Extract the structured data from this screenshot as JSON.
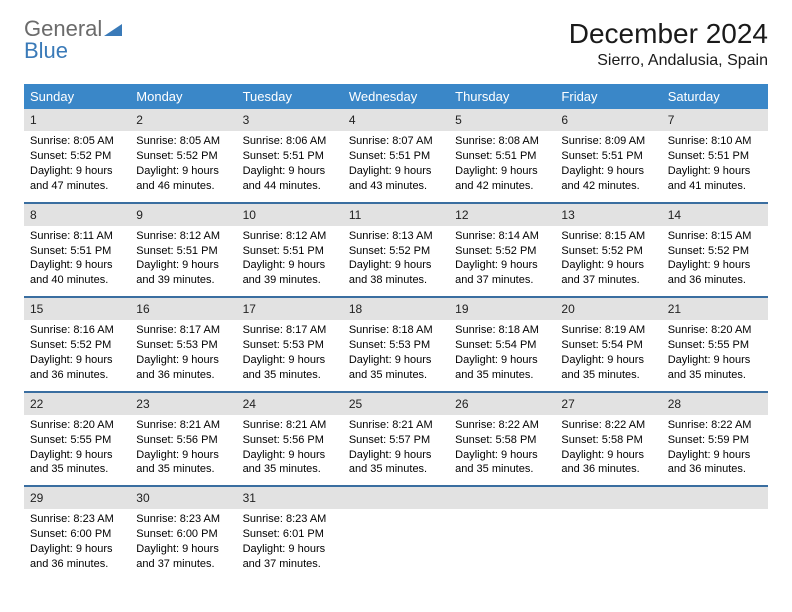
{
  "logo": {
    "textGrey": "General",
    "textBlue": "Blue"
  },
  "header": {
    "monthTitle": "December 2024",
    "location": "Sierro, Andalusia, Spain"
  },
  "colors": {
    "headerBar": "#3a87c8",
    "weekBorder": "#3a6ea0",
    "dayNumBg": "#e2e2e2",
    "logoGrey": "#6b6b6b",
    "logoBlue": "#3a7ab8"
  },
  "dayNames": [
    "Sunday",
    "Monday",
    "Tuesday",
    "Wednesday",
    "Thursday",
    "Friday",
    "Saturday"
  ],
  "weeks": [
    [
      {
        "n": "1",
        "sunrise": "Sunrise: 8:05 AM",
        "sunset": "Sunset: 5:52 PM",
        "d1": "Daylight: 9 hours",
        "d2": "and 47 minutes."
      },
      {
        "n": "2",
        "sunrise": "Sunrise: 8:05 AM",
        "sunset": "Sunset: 5:52 PM",
        "d1": "Daylight: 9 hours",
        "d2": "and 46 minutes."
      },
      {
        "n": "3",
        "sunrise": "Sunrise: 8:06 AM",
        "sunset": "Sunset: 5:51 PM",
        "d1": "Daylight: 9 hours",
        "d2": "and 44 minutes."
      },
      {
        "n": "4",
        "sunrise": "Sunrise: 8:07 AM",
        "sunset": "Sunset: 5:51 PM",
        "d1": "Daylight: 9 hours",
        "d2": "and 43 minutes."
      },
      {
        "n": "5",
        "sunrise": "Sunrise: 8:08 AM",
        "sunset": "Sunset: 5:51 PM",
        "d1": "Daylight: 9 hours",
        "d2": "and 42 minutes."
      },
      {
        "n": "6",
        "sunrise": "Sunrise: 8:09 AM",
        "sunset": "Sunset: 5:51 PM",
        "d1": "Daylight: 9 hours",
        "d2": "and 42 minutes."
      },
      {
        "n": "7",
        "sunrise": "Sunrise: 8:10 AM",
        "sunset": "Sunset: 5:51 PM",
        "d1": "Daylight: 9 hours",
        "d2": "and 41 minutes."
      }
    ],
    [
      {
        "n": "8",
        "sunrise": "Sunrise: 8:11 AM",
        "sunset": "Sunset: 5:51 PM",
        "d1": "Daylight: 9 hours",
        "d2": "and 40 minutes."
      },
      {
        "n": "9",
        "sunrise": "Sunrise: 8:12 AM",
        "sunset": "Sunset: 5:51 PM",
        "d1": "Daylight: 9 hours",
        "d2": "and 39 minutes."
      },
      {
        "n": "10",
        "sunrise": "Sunrise: 8:12 AM",
        "sunset": "Sunset: 5:51 PM",
        "d1": "Daylight: 9 hours",
        "d2": "and 39 minutes."
      },
      {
        "n": "11",
        "sunrise": "Sunrise: 8:13 AM",
        "sunset": "Sunset: 5:52 PM",
        "d1": "Daylight: 9 hours",
        "d2": "and 38 minutes."
      },
      {
        "n": "12",
        "sunrise": "Sunrise: 8:14 AM",
        "sunset": "Sunset: 5:52 PM",
        "d1": "Daylight: 9 hours",
        "d2": "and 37 minutes."
      },
      {
        "n": "13",
        "sunrise": "Sunrise: 8:15 AM",
        "sunset": "Sunset: 5:52 PM",
        "d1": "Daylight: 9 hours",
        "d2": "and 37 minutes."
      },
      {
        "n": "14",
        "sunrise": "Sunrise: 8:15 AM",
        "sunset": "Sunset: 5:52 PM",
        "d1": "Daylight: 9 hours",
        "d2": "and 36 minutes."
      }
    ],
    [
      {
        "n": "15",
        "sunrise": "Sunrise: 8:16 AM",
        "sunset": "Sunset: 5:52 PM",
        "d1": "Daylight: 9 hours",
        "d2": "and 36 minutes."
      },
      {
        "n": "16",
        "sunrise": "Sunrise: 8:17 AM",
        "sunset": "Sunset: 5:53 PM",
        "d1": "Daylight: 9 hours",
        "d2": "and 36 minutes."
      },
      {
        "n": "17",
        "sunrise": "Sunrise: 8:17 AM",
        "sunset": "Sunset: 5:53 PM",
        "d1": "Daylight: 9 hours",
        "d2": "and 35 minutes."
      },
      {
        "n": "18",
        "sunrise": "Sunrise: 8:18 AM",
        "sunset": "Sunset: 5:53 PM",
        "d1": "Daylight: 9 hours",
        "d2": "and 35 minutes."
      },
      {
        "n": "19",
        "sunrise": "Sunrise: 8:18 AM",
        "sunset": "Sunset: 5:54 PM",
        "d1": "Daylight: 9 hours",
        "d2": "and 35 minutes."
      },
      {
        "n": "20",
        "sunrise": "Sunrise: 8:19 AM",
        "sunset": "Sunset: 5:54 PM",
        "d1": "Daylight: 9 hours",
        "d2": "and 35 minutes."
      },
      {
        "n": "21",
        "sunrise": "Sunrise: 8:20 AM",
        "sunset": "Sunset: 5:55 PM",
        "d1": "Daylight: 9 hours",
        "d2": "and 35 minutes."
      }
    ],
    [
      {
        "n": "22",
        "sunrise": "Sunrise: 8:20 AM",
        "sunset": "Sunset: 5:55 PM",
        "d1": "Daylight: 9 hours",
        "d2": "and 35 minutes."
      },
      {
        "n": "23",
        "sunrise": "Sunrise: 8:21 AM",
        "sunset": "Sunset: 5:56 PM",
        "d1": "Daylight: 9 hours",
        "d2": "and 35 minutes."
      },
      {
        "n": "24",
        "sunrise": "Sunrise: 8:21 AM",
        "sunset": "Sunset: 5:56 PM",
        "d1": "Daylight: 9 hours",
        "d2": "and 35 minutes."
      },
      {
        "n": "25",
        "sunrise": "Sunrise: 8:21 AM",
        "sunset": "Sunset: 5:57 PM",
        "d1": "Daylight: 9 hours",
        "d2": "and 35 minutes."
      },
      {
        "n": "26",
        "sunrise": "Sunrise: 8:22 AM",
        "sunset": "Sunset: 5:58 PM",
        "d1": "Daylight: 9 hours",
        "d2": "and 35 minutes."
      },
      {
        "n": "27",
        "sunrise": "Sunrise: 8:22 AM",
        "sunset": "Sunset: 5:58 PM",
        "d1": "Daylight: 9 hours",
        "d2": "and 36 minutes."
      },
      {
        "n": "28",
        "sunrise": "Sunrise: 8:22 AM",
        "sunset": "Sunset: 5:59 PM",
        "d1": "Daylight: 9 hours",
        "d2": "and 36 minutes."
      }
    ],
    [
      {
        "n": "29",
        "sunrise": "Sunrise: 8:23 AM",
        "sunset": "Sunset: 6:00 PM",
        "d1": "Daylight: 9 hours",
        "d2": "and 36 minutes."
      },
      {
        "n": "30",
        "sunrise": "Sunrise: 8:23 AM",
        "sunset": "Sunset: 6:00 PM",
        "d1": "Daylight: 9 hours",
        "d2": "and 37 minutes."
      },
      {
        "n": "31",
        "sunrise": "Sunrise: 8:23 AM",
        "sunset": "Sunset: 6:01 PM",
        "d1": "Daylight: 9 hours",
        "d2": "and 37 minutes."
      },
      {
        "empty": true
      },
      {
        "empty": true
      },
      {
        "empty": true
      },
      {
        "empty": true
      }
    ]
  ]
}
